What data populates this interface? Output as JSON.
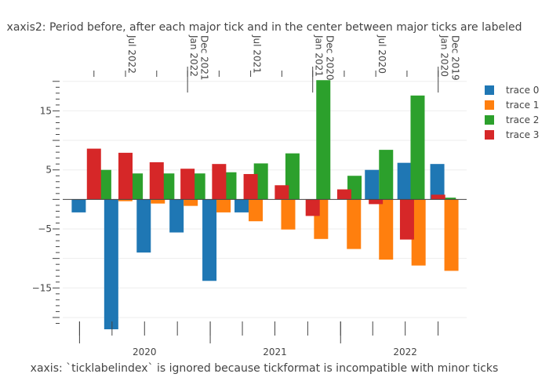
{
  "chart_data": {
    "type": "bar",
    "title": "xaxis2: Period before, after each major tick and in the center between major ticks are labeled",
    "xlabel": "xaxis: `ticklabelindex` is ignored because tickformat is incompatible with minor ticks",
    "ylabel": "",
    "ylim": [
      -22,
      20.5
    ],
    "y_ticks": [
      -15,
      -5,
      5,
      15
    ],
    "grid": true,
    "legend_position": "top-right",
    "bottom_axis_labels": [
      "2020",
      "2021",
      "2022"
    ],
    "top_axis_labels": [
      {
        "label": "Jul 2022",
        "date": "2022-07-01"
      },
      {
        "label": "Jan 2022",
        "date": "2022-01-01"
      },
      {
        "label": "Dec 2021",
        "date": "2021-12-01"
      },
      {
        "label": "Jul 2021",
        "date": "2021-07-01"
      },
      {
        "label": "Jan 2021",
        "date": "2021-01-01"
      },
      {
        "label": "Dec 2020",
        "date": "2020-12-01"
      },
      {
        "label": "Jul 2020",
        "date": "2020-07-01"
      },
      {
        "label": "Jan 2020",
        "date": "2020-01-01"
      },
      {
        "label": "Dec 2019",
        "date": "2019-12-01"
      }
    ],
    "series": [
      {
        "name": "trace 0",
        "color": "#1f77b4",
        "axis": "xaxis",
        "x": [
          "2020-01",
          "2020-04",
          "2020-07",
          "2020-10",
          "2021-01",
          "2021-04",
          "2021-07",
          "2021-10",
          "2022-01",
          "2022-04",
          "2022-07",
          "2022-10"
        ],
        "values": [
          -2.2,
          -22,
          -9,
          -5.6,
          -13.8,
          -2.2,
          0,
          0,
          0,
          5,
          6.2,
          6
        ]
      },
      {
        "name": "trace 1",
        "color": "#ff7f0e",
        "axis": "xaxis",
        "x": [
          "2020-01",
          "2020-04",
          "2020-07",
          "2020-10",
          "2021-01",
          "2021-04",
          "2021-07",
          "2021-10",
          "2022-01",
          "2022-04",
          "2022-07",
          "2022-10"
        ],
        "values": [
          0,
          -0.3,
          -0.7,
          -1.1,
          -2.2,
          -3.7,
          -5.1,
          -6.7,
          -8.4,
          -10.2,
          -11.2,
          -12.1
        ]
      },
      {
        "name": "trace 2",
        "color": "#2ca02c",
        "axis": "xaxis2",
        "x": [
          "2022-09",
          "2022-06",
          "2022-03",
          "2021-12",
          "2021-09",
          "2021-06",
          "2021-03",
          "2020-12",
          "2020-09",
          "2020-06",
          "2020-03",
          "2019-12"
        ],
        "values": [
          5,
          4.4,
          4.4,
          4.4,
          4.6,
          6.1,
          7.8,
          20.2,
          4,
          8.4,
          17.6,
          0.3
        ]
      },
      {
        "name": "trace 3",
        "color": "#d62728",
        "axis": "xaxis2",
        "x": [
          "2022-10",
          "2022-07",
          "2022-04",
          "2022-01",
          "2021-10",
          "2021-07",
          "2021-04",
          "2021-01",
          "2020-10",
          "2020-07",
          "2020-04",
          "2020-01"
        ],
        "values": [
          8.6,
          7.9,
          6.3,
          5.2,
          6,
          4.3,
          2.4,
          -2.8,
          1.7,
          -0.8,
          -6.8,
          0.8
        ]
      }
    ]
  }
}
